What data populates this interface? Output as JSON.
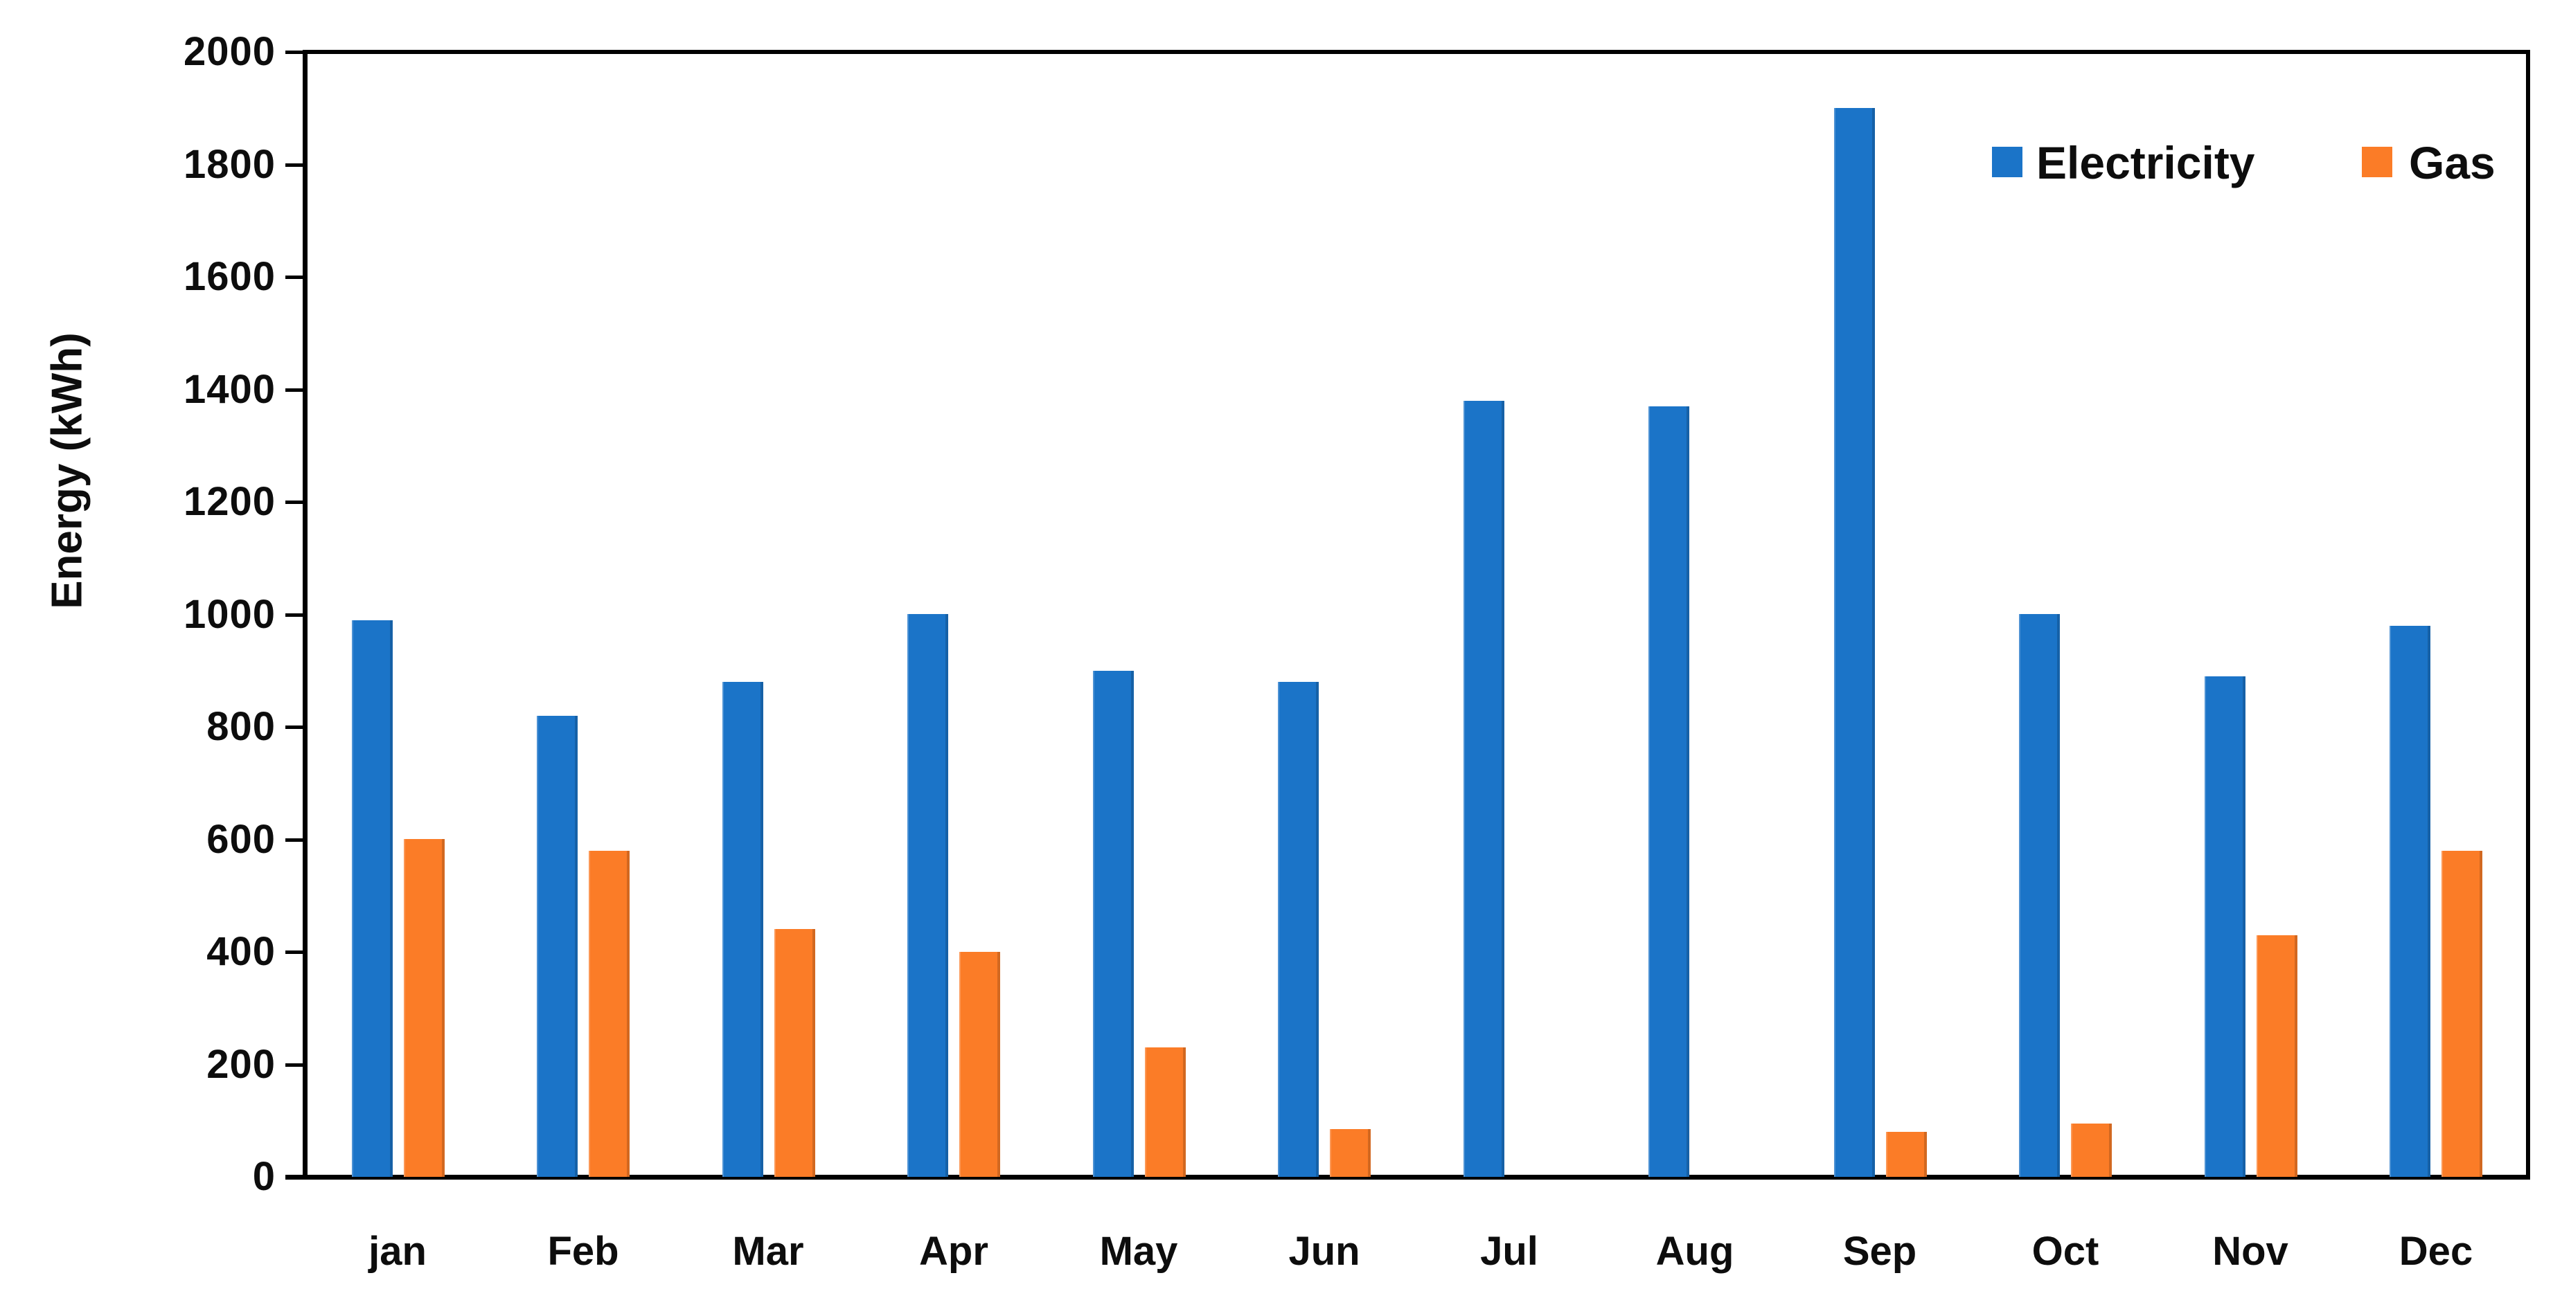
{
  "chart_data": {
    "type": "bar",
    "title": "",
    "ylabel": "Energy (kWh)",
    "xlabel": "",
    "ylim": [
      0,
      2000
    ],
    "ytick_step": 200,
    "grid": false,
    "legend_position": "top-right",
    "categories": [
      "jan",
      "Feb",
      "Mar",
      "Apr",
      "May",
      "Jun",
      "Jul",
      "Aug",
      "Sep",
      "Oct",
      "Nov",
      "Dec"
    ],
    "series": [
      {
        "name": "Electricity",
        "color": "#1B74C8",
        "values": [
          990,
          820,
          880,
          1000,
          900,
          880,
          1380,
          1370,
          1900,
          1000,
          890,
          980
        ]
      },
      {
        "name": "Gas",
        "color": "#FB7C27",
        "values": [
          600,
          580,
          440,
          400,
          230,
          85,
          0,
          0,
          80,
          95,
          430,
          580
        ]
      }
    ],
    "axis_color": "#000000",
    "text_color": "#0D0D0D"
  }
}
